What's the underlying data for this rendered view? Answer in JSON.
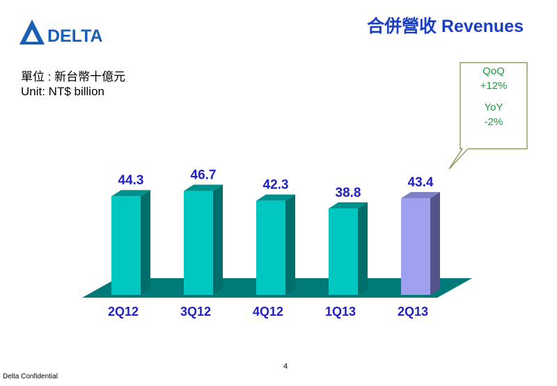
{
  "header": {
    "title": "合併營收 Revenues",
    "logo_text": "DELTA"
  },
  "unit": {
    "zh": "單位 : 新台幣十億元",
    "en": "Unit: NT$ billion"
  },
  "callout": {
    "qoq_label": "QoQ",
    "qoq_value": "+12%",
    "yoy_label": "YoY",
    "yoy_value": "-2%"
  },
  "footer": {
    "page_number": "4",
    "confidential": "Delta Confidential"
  },
  "colors": {
    "brand_blue": "#1a5fb4",
    "title_blue": "#1a3fc0",
    "label_blue": "#2020c8",
    "bar_teal": "#00c8c0",
    "bar_highlight": "#a0a0f0",
    "floor_teal": "#007a78",
    "callout_green": "#1a9a3a"
  },
  "chart_data": {
    "type": "bar",
    "categories": [
      "2Q12",
      "3Q12",
      "4Q12",
      "1Q13",
      "2Q13"
    ],
    "values": [
      44.3,
      46.7,
      42.3,
      38.8,
      43.4
    ],
    "value_labels": [
      "44.3",
      "46.7",
      "42.3",
      "38.8",
      "43.4"
    ],
    "highlight_index": 4,
    "title": "",
    "xlabel": "",
    "ylabel": "",
    "grid": false,
    "legend": "none"
  }
}
